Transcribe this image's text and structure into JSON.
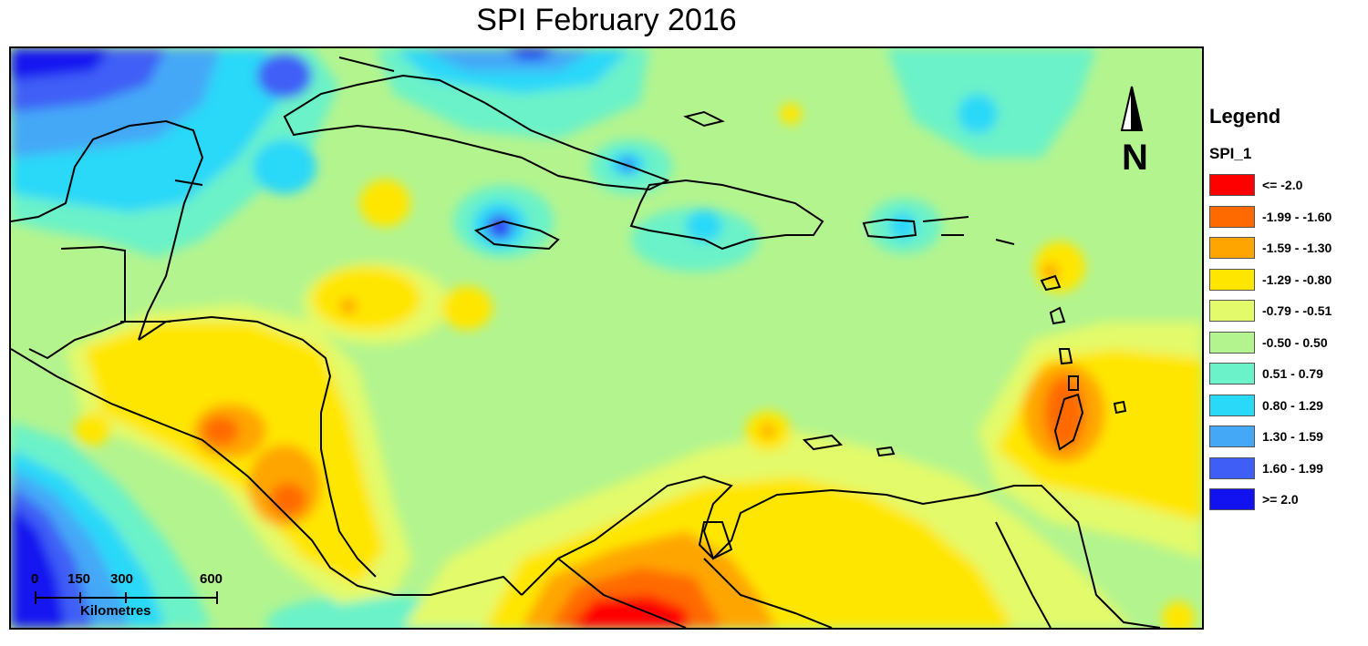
{
  "title": "SPI February 2016",
  "legend": {
    "title": "Legend",
    "field": "SPI_1",
    "classes": [
      {
        "label": "<= -2.0",
        "color": "#ff0000"
      },
      {
        "label": "-1.99 - -1.60",
        "color": "#ff6a00"
      },
      {
        "label": "-1.59 - -1.30",
        "color": "#ffa500"
      },
      {
        "label": "-1.29 - -0.80",
        "color": "#ffe600"
      },
      {
        "label": "-0.79 - -0.51",
        "color": "#e3fa6a"
      },
      {
        "label": "-0.50 - 0.50",
        "color": "#b3f48f"
      },
      {
        "label": "0.51 - 0.79",
        "color": "#6cf2c8"
      },
      {
        "label": "0.80 - 1.29",
        "color": "#2ad8f8"
      },
      {
        "label": "1.30 - 1.59",
        "color": "#45a8f7"
      },
      {
        "label": "1.60 - 1.99",
        "color": "#3f5ef6"
      },
      {
        "label": ">= 2.0",
        "color": "#1212f0"
      }
    ]
  },
  "scale_bar": {
    "ticks": [
      "0",
      "150",
      "300",
      "600"
    ],
    "unit": "Kilometres"
  },
  "north_arrow": {
    "label": "N",
    "icon": "north-arrow-icon"
  }
}
